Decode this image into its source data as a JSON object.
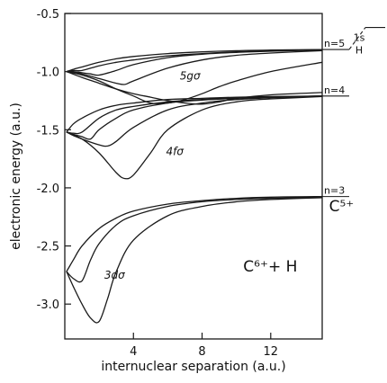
{
  "chart_data": {
    "type": "line",
    "xlabel": "internuclear separation (a.u.)",
    "ylabel": "electronic energy (a.u.)",
    "xlim": [
      0,
      15
    ],
    "ylim": [
      -3.3,
      -0.5
    ],
    "xticks": [
      4,
      8,
      12
    ],
    "xtick_labels": [
      "4",
      "8",
      "12"
    ],
    "yticks": [
      -0.5,
      -1.0,
      -1.5,
      -2.0,
      -2.5,
      -3.0
    ],
    "ytick_labels": [
      "-0.5",
      "-1.0",
      "-1.5",
      "-2.0",
      "-2.5",
      "-3.0"
    ],
    "grid": false,
    "series": [
      {
        "x": [
          0.1,
          0.5,
          1,
          2,
          3,
          4,
          6,
          8,
          10,
          12,
          15
        ],
        "y": [
          -1.0,
          -0.98,
          -0.96,
          -0.92,
          -0.89,
          -0.87,
          -0.845,
          -0.83,
          -0.82,
          -0.815,
          -0.81
        ]
      },
      {
        "x": [
          0.1,
          0.5,
          1,
          2,
          3,
          4,
          6,
          8,
          10,
          12,
          15
        ],
        "y": [
          -1.0,
          -0.99,
          -0.99,
          -0.95,
          -0.92,
          -0.9,
          -0.865,
          -0.845,
          -0.83,
          -0.82,
          -0.81
        ]
      },
      {
        "x": [
          0.1,
          0.5,
          1,
          1.5,
          2,
          3,
          4,
          6,
          8,
          10,
          12,
          15
        ],
        "y": [
          -1.0,
          -1.0,
          -1.01,
          -1.02,
          -1.03,
          -0.99,
          -0.94,
          -0.88,
          -0.85,
          -0.835,
          -0.825,
          -0.815
        ]
      },
      {
        "x": [
          0.1,
          1,
          2,
          3,
          3.5,
          4,
          6,
          8,
          10,
          12,
          15
        ],
        "y": [
          -1.0,
          -1.02,
          -1.06,
          -1.1,
          -1.11,
          -1.08,
          -0.97,
          -0.9,
          -0.86,
          -0.84,
          -0.82
        ]
      },
      {
        "x": [
          0.1,
          1,
          2,
          3,
          4,
          5,
          6,
          7,
          8,
          9,
          10,
          12,
          15
        ],
        "y": [
          -1.0,
          -1.03,
          -1.08,
          -1.15,
          -1.21,
          -1.27,
          -1.27,
          -1.24,
          -1.19,
          -1.13,
          -1.08,
          -1.0,
          -0.92
        ]
      },
      {
        "x": [
          0.1,
          1,
          2,
          3,
          4,
          5,
          6,
          7,
          8,
          9,
          10,
          12,
          15
        ],
        "y": [
          -1.0,
          -1.05,
          -1.1,
          -1.15,
          -1.19,
          -1.22,
          -1.25,
          -1.27,
          -1.28,
          -1.26,
          -1.23,
          -1.2,
          -1.18
        ]
      },
      {
        "x": [
          0.1,
          0.5,
          1,
          2,
          3,
          4,
          6,
          8,
          10,
          12,
          15
        ],
        "y": [
          -1.52,
          -1.45,
          -1.4,
          -1.33,
          -1.29,
          -1.27,
          -1.24,
          -1.23,
          -1.22,
          -1.215,
          -1.21
        ]
      },
      {
        "x": [
          0.1,
          0.5,
          1,
          2,
          3,
          4,
          6,
          8,
          10,
          12,
          15
        ],
        "y": [
          -1.52,
          -1.53,
          -1.52,
          -1.4,
          -1.33,
          -1.3,
          -1.26,
          -1.24,
          -1.225,
          -1.22,
          -1.21
        ]
      },
      {
        "x": [
          0.1,
          0.5,
          1,
          1.5,
          2,
          3,
          4,
          6,
          8,
          10,
          12,
          15
        ],
        "y": [
          -1.52,
          -1.54,
          -1.56,
          -1.58,
          -1.5,
          -1.4,
          -1.33,
          -1.27,
          -1.245,
          -1.23,
          -1.22,
          -1.21
        ]
      },
      {
        "x": [
          0.1,
          0.5,
          1,
          2,
          2.5,
          3,
          4,
          6,
          8,
          10,
          12,
          15
        ],
        "y": [
          -1.52,
          -1.55,
          -1.58,
          -1.63,
          -1.64,
          -1.6,
          -1.48,
          -1.33,
          -1.27,
          -1.24,
          -1.225,
          -1.21
        ]
      },
      {
        "x": [
          0.1,
          1,
          2,
          3,
          3.5,
          4,
          5,
          6,
          8,
          10,
          12,
          15
        ],
        "y": [
          -1.52,
          -1.58,
          -1.7,
          -1.87,
          -1.92,
          -1.89,
          -1.7,
          -1.5,
          -1.33,
          -1.26,
          -1.235,
          -1.215
        ]
      },
      {
        "x": [
          0.1,
          0.5,
          1,
          2,
          3,
          4,
          6,
          8,
          10,
          12,
          15
        ],
        "y": [
          -2.72,
          -2.62,
          -2.5,
          -2.35,
          -2.26,
          -2.2,
          -2.14,
          -2.11,
          -2.09,
          -2.08,
          -2.075
        ]
      },
      {
        "x": [
          0.1,
          0.5,
          1,
          1.5,
          2,
          3,
          4,
          6,
          8,
          10,
          12,
          15
        ],
        "y": [
          -2.72,
          -2.78,
          -2.8,
          -2.62,
          -2.48,
          -2.32,
          -2.24,
          -2.16,
          -2.12,
          -2.1,
          -2.09,
          -2.08
        ]
      },
      {
        "x": [
          0.1,
          0.5,
          1,
          1.5,
          2,
          2.5,
          3,
          4,
          6,
          8,
          10,
          12,
          15
        ],
        "y": [
          -2.72,
          -2.85,
          -3.0,
          -3.12,
          -3.15,
          -2.95,
          -2.72,
          -2.45,
          -2.24,
          -2.16,
          -2.12,
          -2.1,
          -2.085
        ]
      }
    ],
    "asymptote_levels": [
      {
        "label": "n=5",
        "y": -0.81
      },
      {
        "label": "n=4",
        "y": -1.21
      },
      {
        "label": "n=3",
        "y": -2.075
      }
    ],
    "h1s_level": {
      "label_top": "1s",
      "label_bottom": "H",
      "y": -0.62
    },
    "annotations": [
      {
        "text": "5gσ",
        "x": 6.7,
        "y": -1.07
      },
      {
        "text": "4fσ",
        "x": 5.9,
        "y": -1.72
      },
      {
        "text": "3dσ",
        "x": 2.3,
        "y": -2.78
      },
      {
        "text": "C⁵⁺",
        "x": 15.4,
        "y": -2.2
      },
      {
        "text": "C⁶⁺+ H",
        "x": 10.4,
        "y": -2.72
      }
    ]
  }
}
